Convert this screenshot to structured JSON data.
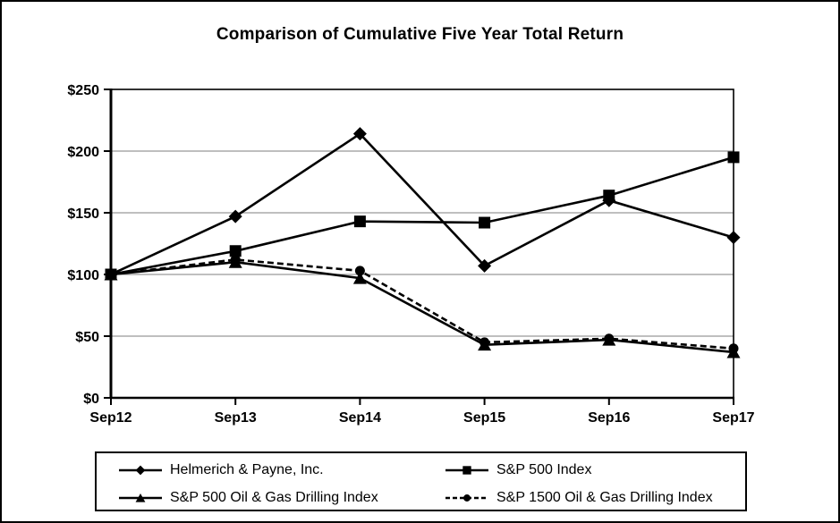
{
  "title": "Comparison of Cumulative Five Year Total Return",
  "chart_data": {
    "type": "line",
    "title": "Comparison of Cumulative Five Year Total Return",
    "categories": [
      "Sep12",
      "Sep13",
      "Sep14",
      "Sep15",
      "Sep16",
      "Sep17"
    ],
    "series": [
      {
        "name": "Helmerich & Payne, Inc.",
        "marker": "diamond",
        "line_style": "solid",
        "values": [
          100,
          147,
          214,
          107,
          160,
          130
        ]
      },
      {
        "name": "S&P 500 Index",
        "marker": "square",
        "line_style": "solid",
        "values": [
          100,
          119,
          143,
          142,
          164,
          195
        ]
      },
      {
        "name": "S&P 500 Oil & Gas Drilling Index",
        "marker": "triangle",
        "line_style": "solid",
        "values": [
          100,
          110,
          97,
          43,
          47,
          37
        ]
      },
      {
        "name": "S&P 1500 Oil & Gas Drilling Index",
        "marker": "circle",
        "line_style": "dashed",
        "values": [
          100,
          112,
          103,
          45,
          48,
          40
        ]
      }
    ],
    "ylim": [
      0,
      250
    ],
    "y_ticks": [
      0,
      50,
      100,
      150,
      200,
      250
    ],
    "y_tick_prefix": "$",
    "xlabel": "",
    "ylabel": "",
    "grid": "horizontal",
    "legend_position": "bottom-box"
  },
  "colors": {
    "series": "#000000",
    "grid": "#999999",
    "axis": "#000000",
    "background": "#ffffff",
    "border": "#000000"
  }
}
